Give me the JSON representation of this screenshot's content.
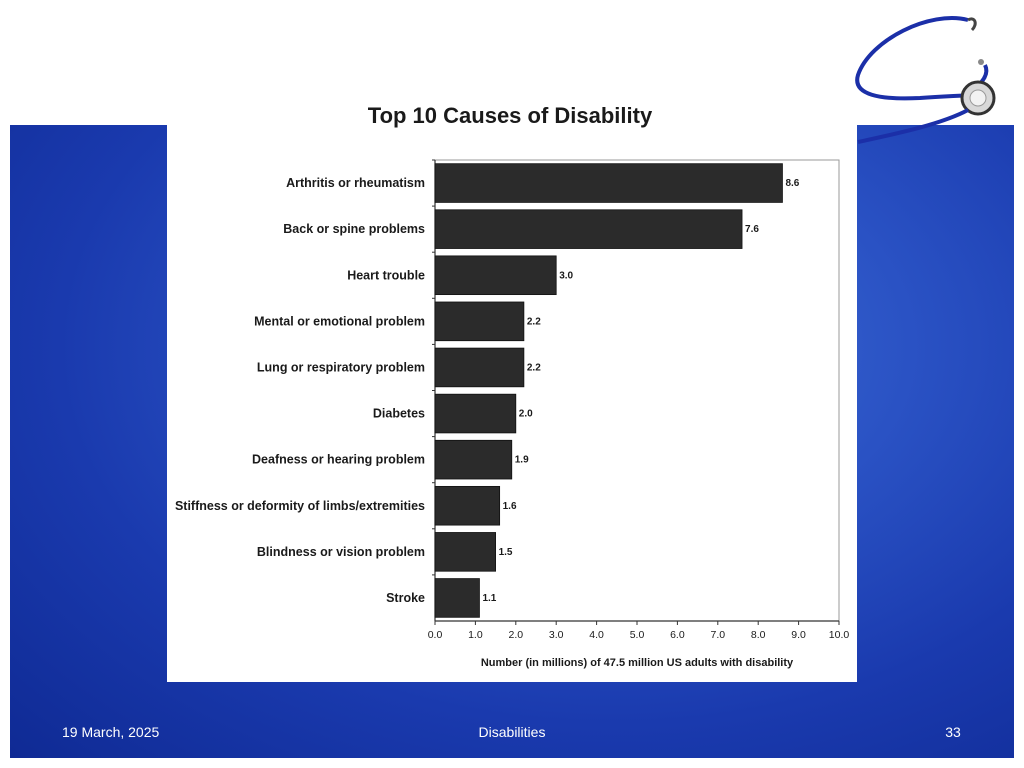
{
  "footer": {
    "date": "19 March, 2025",
    "title": "Disabilities",
    "page_number": "33"
  },
  "decoration": {
    "icon": "stethoscope-icon",
    "slide_bg_color": "#1a3aae",
    "bar_color": "#2b2b2b"
  },
  "chart_data": {
    "type": "bar",
    "orientation": "horizontal",
    "title": "Top 10 Causes of Disability",
    "xlabel": "Number (in millions) of 47.5 million US adults with disability",
    "ylabel": "",
    "categories": [
      "Arthritis or rheumatism",
      "Back or spine problems",
      "Heart trouble",
      "Mental or emotional problem",
      "Lung or respiratory problem",
      "Diabetes",
      "Deafness or hearing problem",
      "Stiffness or deformity of limbs/extremities",
      "Blindness or vision problem",
      "Stroke"
    ],
    "values": [
      8.6,
      7.6,
      3.0,
      2.2,
      2.2,
      2.0,
      1.9,
      1.6,
      1.5,
      1.1
    ],
    "value_labels": [
      "8.6",
      "7.6",
      "3.0",
      "2.2",
      "2.2",
      "2.0",
      "1.9",
      "1.6",
      "1.5",
      "1.1"
    ],
    "xticks": [
      "0.0",
      "1.0",
      "2.0",
      "3.0",
      "4.0",
      "5.0",
      "6.0",
      "7.0",
      "8.0",
      "9.0",
      "10.0"
    ],
    "xlim": [
      0,
      10
    ],
    "grid": false,
    "legend": "none"
  }
}
